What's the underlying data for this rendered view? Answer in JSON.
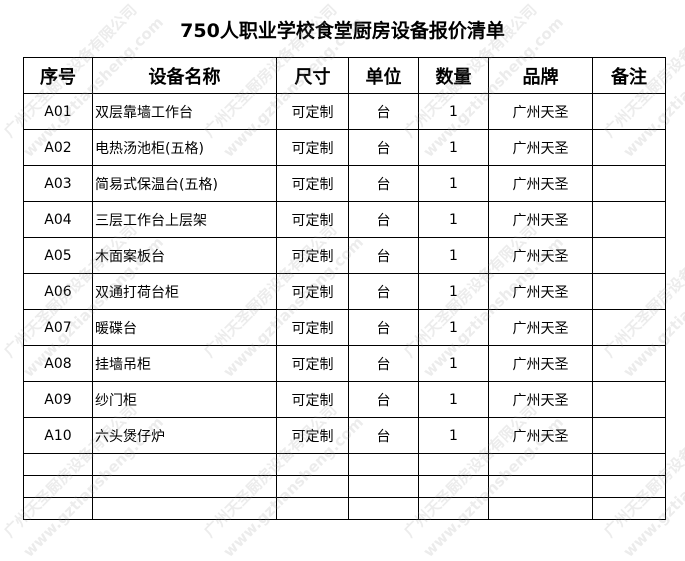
{
  "title": "750人职业学校食堂厨房设备报价清单",
  "headers": [
    "序号",
    "设备名称",
    "尺寸",
    "单位",
    "数量",
    "品牌",
    "备注"
  ],
  "rows": [
    {
      "no": "A01",
      "name": "双层靠墙工作台",
      "size": "可定制",
      "unit": "台",
      "qty": "1",
      "brand": "广州天圣",
      "note": ""
    },
    {
      "no": "A02",
      "name": "电热汤池柜(五格)",
      "size": "可定制",
      "unit": "台",
      "qty": "1",
      "brand": "广州天圣",
      "note": ""
    },
    {
      "no": "A03",
      "name": "简易式保温台(五格)",
      "size": "可定制",
      "unit": "台",
      "qty": "1",
      "brand": "广州天圣",
      "note": ""
    },
    {
      "no": "A04",
      "name": "三层工作台上层架",
      "size": "可定制",
      "unit": "台",
      "qty": "1",
      "brand": "广州天圣",
      "note": ""
    },
    {
      "no": "A05",
      "name": "木面案板台",
      "size": "可定制",
      "unit": "台",
      "qty": "1",
      "brand": "广州天圣",
      "note": ""
    },
    {
      "no": "A06",
      "name": "双通打荷台柜",
      "size": "可定制",
      "unit": "台",
      "qty": "1",
      "brand": "广州天圣",
      "note": ""
    },
    {
      "no": "A07",
      "name": "暖碟台",
      "size": "可定制",
      "unit": "台",
      "qty": "1",
      "brand": "广州天圣",
      "note": ""
    },
    {
      "no": "A08",
      "name": "挂墙吊柜",
      "size": "可定制",
      "unit": "台",
      "qty": "1",
      "brand": "广州天圣",
      "note": ""
    },
    {
      "no": "A09",
      "name": "纱门柜",
      "size": "可定制",
      "unit": "台",
      "qty": "1",
      "brand": "广州天圣",
      "note": ""
    },
    {
      "no": "A10",
      "name": "六头煲仔炉",
      "size": "可定制",
      "unit": "台",
      "qty": "1",
      "brand": "广州天圣",
      "note": ""
    }
  ],
  "watermark": {
    "company": "广州天圣厨房设备有限公司",
    "site": "www.gztiansheng.com"
  }
}
